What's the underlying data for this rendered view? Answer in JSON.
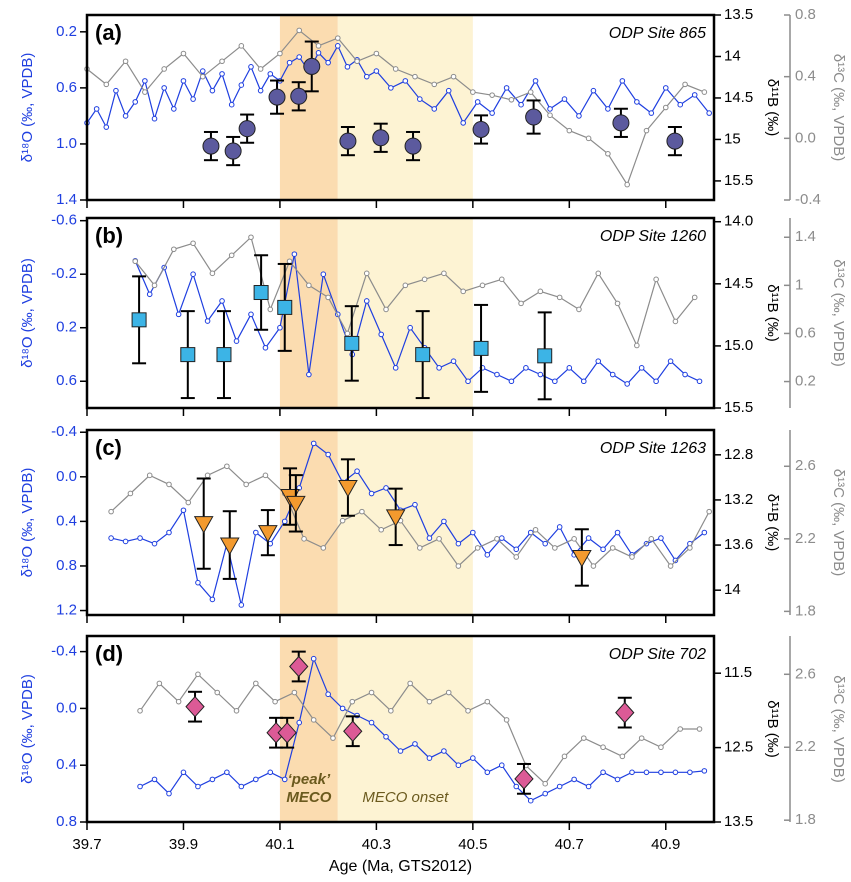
{
  "chart_data": [
    {
      "type": "line",
      "panel": "(a)",
      "title": "ODP Site 865",
      "ylabel": "δ¹⁸O (‰, VPDB)",
      "y2label": "δ¹¹B (‰)",
      "y3label": "δ¹³C (‰, VPDB)",
      "xlim": [
        39.7,
        41.0
      ],
      "ylim": [
        1.4,
        0.08
      ],
      "y2lim": [
        15.73,
        13.5
      ],
      "y3lim": [
        -0.4,
        0.8
      ],
      "yticks": [
        0.2,
        0.6,
        {
          "value": 1,
          "label": "1.0"
        },
        1.4
      ],
      "y2ticks": [
        13.5,
        14,
        14.5,
        15,
        15.5
      ],
      "y3ticks": [
        0.8,
        0.4,
        {
          "value": 0,
          "label": "0.0"
        },
        -0.4
      ],
      "series": [
        {
          "type": "line",
          "axis": "y",
          "color": "#1f3fe0",
          "x": [
            39.7,
            39.72,
            39.74,
            39.76,
            39.78,
            39.8,
            39.82,
            39.84,
            39.86,
            39.88,
            39.9,
            39.92,
            39.94,
            39.96,
            39.98,
            40.0,
            40.02,
            40.04,
            40.06,
            40.08,
            40.1,
            40.12,
            40.14,
            40.16,
            40.18,
            40.2,
            40.22,
            40.24,
            40.26,
            40.28,
            40.3,
            40.33,
            40.36,
            40.39,
            40.42,
            40.45,
            40.48,
            40.51,
            40.54,
            40.57,
            40.6,
            40.63,
            40.66,
            40.69,
            40.72,
            40.75,
            40.78,
            40.81,
            40.84,
            40.87,
            40.9,
            40.93,
            40.96,
            40.99
          ],
          "values": [
            0.85,
            0.75,
            0.88,
            0.62,
            0.8,
            0.7,
            0.55,
            0.82,
            0.6,
            0.75,
            0.55,
            0.68,
            0.48,
            0.62,
            0.5,
            0.72,
            0.58,
            0.45,
            0.62,
            0.5,
            0.55,
            0.42,
            0.38,
            0.48,
            0.35,
            0.42,
            0.3,
            0.45,
            0.4,
            0.52,
            0.48,
            0.6,
            0.55,
            0.68,
            0.75,
            0.62,
            0.85,
            0.7,
            0.78,
            0.6,
            0.72,
            0.55,
            0.75,
            0.68,
            0.8,
            0.62,
            0.75,
            0.55,
            0.7,
            0.78,
            0.6,
            0.72,
            0.65,
            0.78
          ]
        },
        {
          "type": "line",
          "axis": "y3",
          "color": "#8c8c8c",
          "x": [
            39.7,
            39.74,
            39.78,
            39.82,
            39.86,
            39.9,
            39.94,
            39.98,
            40.02,
            40.06,
            40.1,
            40.14,
            40.18,
            40.22,
            40.26,
            40.3,
            40.34,
            40.38,
            40.42,
            40.46,
            40.5,
            40.54,
            40.58,
            40.62,
            40.66,
            40.7,
            40.74,
            40.78,
            40.82,
            40.86,
            40.9,
            40.94,
            40.98
          ],
          "values": [
            0.45,
            0.35,
            0.5,
            0.3,
            0.45,
            0.55,
            0.4,
            0.5,
            0.6,
            0.45,
            0.55,
            0.7,
            0.6,
            0.65,
            0.5,
            0.55,
            0.45,
            0.4,
            0.35,
            0.4,
            0.3,
            0.28,
            0.25,
            0.3,
            0.15,
            0.05,
            0.0,
            -0.1,
            -0.3,
            0.05,
            0.2,
            0.35,
            0.3
          ]
        },
        {
          "type": "scatter",
          "axis": "y2",
          "marker": "circle",
          "color": "#5c5a9e",
          "x": [
            39.957,
            40.003,
            40.032,
            40.094,
            40.139,
            40.166,
            40.241,
            40.309,
            40.376,
            40.517,
            40.626,
            40.807,
            40.919
          ],
          "values": [
            15.08,
            15.14,
            14.87,
            14.49,
            14.48,
            14.12,
            15.02,
            14.98,
            15.08,
            14.88,
            14.73,
            14.8,
            15.02
          ],
          "errors": [
            0.17,
            0.17,
            0.17,
            0.2,
            0.17,
            0.3,
            0.17,
            0.17,
            0.17,
            0.17,
            0.2,
            0.17,
            0.17
          ]
        }
      ]
    },
    {
      "type": "line",
      "panel": "(b)",
      "title": "ODP Site 1260",
      "ylabel": "δ¹⁸O (‰, VPDB)",
      "y2label": "δ¹¹B (‰)",
      "y3label": "δ¹³C (‰, VPDB)",
      "xlim": [
        39.7,
        41.0
      ],
      "ylim": [
        0.8,
        -0.62
      ],
      "y2lim": [
        15.5,
        13.97
      ],
      "y3lim": [
        -0.02,
        1.56
      ],
      "yticks": [
        -0.6,
        -0.2,
        0.2,
        0.6
      ],
      "y2ticks": [
        {
          "value": 14,
          "label": "14.0"
        },
        14.5,
        {
          "value": 15,
          "label": "15.0"
        },
        15.5
      ],
      "y3ticks": [
        1.4,
        1,
        0.6,
        0.2
      ],
      "series": [
        {
          "type": "line",
          "axis": "y",
          "color": "#1f3fe0",
          "x": [
            39.8,
            39.83,
            39.86,
            39.89,
            39.92,
            39.95,
            39.98,
            40.01,
            40.04,
            40.07,
            40.1,
            40.13,
            40.16,
            40.19,
            40.22,
            40.25,
            40.28,
            40.31,
            40.34,
            40.37,
            40.4,
            40.43,
            40.46,
            40.49,
            40.52,
            40.55,
            40.58,
            40.61,
            40.64,
            40.67,
            40.7,
            40.73,
            40.76,
            40.79,
            40.82,
            40.85,
            40.88,
            40.91,
            40.94,
            40.97
          ],
          "values": [
            -0.3,
            -0.05,
            -0.25,
            0.1,
            -0.2,
            0.15,
            0.0,
            0.3,
            0.1,
            0.35,
            0.2,
            -0.35,
            0.55,
            -0.2,
            0.1,
            0.4,
            0.0,
            0.25,
            0.5,
            0.2,
            0.35,
            0.5,
            0.45,
            0.6,
            0.5,
            0.55,
            0.6,
            0.5,
            0.55,
            0.6,
            0.5,
            0.6,
            0.45,
            0.55,
            0.62,
            0.5,
            0.6,
            0.45,
            0.55,
            0.6
          ]
        },
        {
          "type": "line",
          "axis": "y3",
          "color": "#8c8c8c",
          "x": [
            39.8,
            39.84,
            39.88,
            39.92,
            39.96,
            40.0,
            40.04,
            40.08,
            40.12,
            40.16,
            40.2,
            40.24,
            40.28,
            40.32,
            40.36,
            40.4,
            40.44,
            40.48,
            40.52,
            40.56,
            40.6,
            40.64,
            40.68,
            40.72,
            40.76,
            40.8,
            40.84,
            40.88,
            40.92,
            40.96
          ],
          "values": [
            1.2,
            1.0,
            1.3,
            1.35,
            1.1,
            1.25,
            1.4,
            0.8,
            1.2,
            1.0,
            0.9,
            0.6,
            1.1,
            0.8,
            1.0,
            1.05,
            1.1,
            0.95,
            1.0,
            1.05,
            0.85,
            0.95,
            0.9,
            0.8,
            1.1,
            0.85,
            0.5,
            1.05,
            0.7,
            0.9
          ]
        },
        {
          "type": "scatter",
          "axis": "y2",
          "marker": "square",
          "color": "#3cb4e6",
          "x": [
            39.808,
            39.909,
            39.984,
            40.061,
            40.11,
            40.249,
            40.396,
            40.517,
            40.649
          ],
          "values": [
            14.79,
            15.07,
            15.07,
            14.57,
            14.69,
            14.98,
            15.07,
            15.02,
            15.08
          ],
          "errors": [
            0.35,
            0.35,
            0.35,
            0.3,
            0.35,
            0.3,
            0.35,
            0.35,
            0.35
          ]
        }
      ]
    },
    {
      "type": "line",
      "panel": "(c)",
      "title": "ODP Site 1263",
      "ylabel": "δ¹⁸O (‰, VPDB)",
      "y2label": "δ¹¹B (‰)",
      "y3label": "δ¹³C (‰, VPDB)",
      "xlim": [
        39.7,
        41.0
      ],
      "ylim": [
        1.24,
        -0.42
      ],
      "y2lim": [
        14.22,
        12.58
      ],
      "y3lim": [
        1.78,
        2.8
      ],
      "yticks": [
        -0.4,
        {
          "value": 0,
          "label": "0.0"
        },
        0.4,
        0.8,
        1.2
      ],
      "y2ticks": [
        12.8,
        13.2,
        13.6,
        14
      ],
      "y3ticks": [
        2.6,
        2.2,
        1.8
      ],
      "series": [
        {
          "type": "line",
          "axis": "y",
          "color": "#1f3fe0",
          "x": [
            39.75,
            39.78,
            39.81,
            39.84,
            39.87,
            39.9,
            39.93,
            39.96,
            39.99,
            40.02,
            40.05,
            40.08,
            40.11,
            40.14,
            40.17,
            40.2,
            40.23,
            40.26,
            40.29,
            40.32,
            40.35,
            40.38,
            40.41,
            40.44,
            40.47,
            40.5,
            40.53,
            40.56,
            40.59,
            40.62,
            40.65,
            40.68,
            40.71,
            40.74,
            40.77,
            40.8,
            40.83,
            40.86,
            40.89,
            40.92,
            40.95,
            40.98
          ],
          "values": [
            0.55,
            0.58,
            0.55,
            0.6,
            0.5,
            0.3,
            0.95,
            1.1,
            0.6,
            1.15,
            0.5,
            0.6,
            0.4,
            0.1,
            -0.3,
            -0.2,
            0.05,
            -0.05,
            0.15,
            0.1,
            0.3,
            0.25,
            0.55,
            0.4,
            0.6,
            0.5,
            0.7,
            0.55,
            0.65,
            0.5,
            0.6,
            0.45,
            0.7,
            0.55,
            0.65,
            0.5,
            0.7,
            0.6,
            0.55,
            0.75,
            0.6,
            0.5
          ]
        },
        {
          "type": "line",
          "axis": "y3",
          "color": "#8c8c8c",
          "x": [
            39.75,
            39.79,
            39.83,
            39.87,
            39.91,
            39.95,
            39.99,
            40.03,
            40.07,
            40.11,
            40.15,
            40.19,
            40.23,
            40.27,
            40.31,
            40.35,
            40.39,
            40.43,
            40.47,
            40.51,
            40.55,
            40.59,
            40.63,
            40.67,
            40.71,
            40.75,
            40.79,
            40.83,
            40.87,
            40.91,
            40.95,
            40.99
          ],
          "values": [
            2.35,
            2.45,
            2.55,
            2.5,
            2.4,
            2.55,
            2.6,
            2.5,
            2.55,
            2.45,
            2.2,
            2.15,
            2.3,
            2.35,
            2.25,
            2.3,
            2.15,
            2.2,
            2.05,
            2.15,
            2.2,
            2.1,
            2.25,
            2.15,
            2.2,
            2.05,
            2.15,
            2.1,
            2.2,
            2.05,
            2.15,
            2.35
          ]
        },
        {
          "type": "scatter",
          "axis": "y2",
          "marker": "triangle",
          "color": "#f39a2e",
          "x": [
            39.942,
            39.996,
            40.075,
            40.121,
            40.133,
            40.241,
            40.34,
            40.726
          ],
          "values": [
            13.41,
            13.6,
            13.49,
            13.17,
            13.23,
            13.09,
            13.35,
            13.71
          ],
          "errors": [
            0.4,
            0.3,
            0.2,
            0.25,
            0.25,
            0.25,
            0.25,
            0.25
          ]
        }
      ]
    },
    {
      "type": "line",
      "panel": "(d)",
      "title": "ODP Site 702",
      "ylabel": "δ¹⁸O (‰, VPDB)",
      "y2label": "δ¹¹B (‰)",
      "y3label": "δ¹³C (‰, VPDB)",
      "xlabel": "Age (Ma, GTS2012)",
      "xlim": [
        39.7,
        41.0
      ],
      "ylim": [
        0.8,
        -0.51
      ],
      "y2lim": [
        13.5,
        11.0
      ],
      "y3lim": [
        1.79,
        2.81
      ],
      "xticks": [
        39.7,
        39.9,
        40.1,
        40.3,
        40.5,
        40.7,
        40.9
      ],
      "yticks": [
        -0.4,
        {
          "value": 0,
          "label": "0.0"
        },
        0.4,
        0.8
      ],
      "y2ticks": [
        11.5,
        12.5,
        13.5
      ],
      "y3ticks": [
        2.6,
        2.2,
        1.8
      ],
      "shading": [
        {
          "from": 40.1,
          "to": 40.22,
          "color": "#fbdcb0"
        },
        {
          "from": 40.22,
          "to": 40.5,
          "color": "#fdf3d3"
        }
      ],
      "annotations": [
        "‘peak’",
        "MECO",
        "MECO onset"
      ],
      "series": [
        {
          "type": "line",
          "axis": "y",
          "color": "#1f3fe0",
          "x": [
            39.81,
            39.84,
            39.87,
            39.9,
            39.93,
            39.96,
            39.99,
            40.02,
            40.05,
            40.08,
            40.11,
            40.14,
            40.17,
            40.2,
            40.23,
            40.26,
            40.29,
            40.32,
            40.35,
            40.38,
            40.41,
            40.44,
            40.47,
            40.5,
            40.53,
            40.56,
            40.59,
            40.62,
            40.65,
            40.68,
            40.71,
            40.74,
            40.77,
            40.8,
            40.83,
            40.86,
            40.89,
            40.92,
            40.95,
            40.98
          ],
          "values": [
            0.55,
            0.5,
            0.6,
            0.45,
            0.55,
            0.5,
            0.45,
            0.55,
            0.5,
            0.45,
            0.5,
            0.1,
            -0.35,
            -0.1,
            0.0,
            0.05,
            0.1,
            0.2,
            0.3,
            0.25,
            0.35,
            0.3,
            0.4,
            0.35,
            0.45,
            0.4,
            0.55,
            0.65,
            0.6,
            0.55,
            0.5,
            0.55,
            0.45,
            0.5,
            0.45,
            0.45,
            0.45,
            0.45,
            0.45,
            0.44
          ]
        },
        {
          "type": "line",
          "axis": "y3",
          "color": "#8c8c8c",
          "x": [
            39.81,
            39.85,
            39.89,
            39.93,
            39.97,
            40.01,
            40.05,
            40.09,
            40.13,
            40.17,
            40.21,
            40.25,
            40.29,
            40.33,
            40.37,
            40.41,
            40.45,
            40.49,
            40.53,
            40.57,
            40.61,
            40.65,
            40.69,
            40.73,
            40.77,
            40.81,
            40.85,
            40.89,
            40.93,
            40.97
          ],
          "values": [
            2.4,
            2.55,
            2.45,
            2.6,
            2.5,
            2.4,
            2.55,
            2.45,
            2.5,
            2.35,
            2.25,
            2.45,
            2.5,
            2.4,
            2.55,
            2.45,
            2.5,
            2.4,
            2.45,
            2.35,
            2.1,
            2.0,
            2.15,
            2.25,
            2.2,
            2.15,
            2.25,
            2.2,
            2.3,
            2.3
          ]
        },
        {
          "type": "scatter",
          "axis": "y2",
          "marker": "diamond",
          "color": "#dc5a96",
          "x": [
            39.924,
            40.092,
            40.115,
            40.139,
            40.251,
            40.606,
            40.815
          ],
          "values": [
            11.95,
            12.3,
            12.3,
            11.41,
            12.28,
            12.92,
            12.03
          ],
          "errors": [
            0.2,
            0.2,
            0.2,
            0.2,
            0.2,
            0.2,
            0.2
          ]
        }
      ]
    }
  ]
}
